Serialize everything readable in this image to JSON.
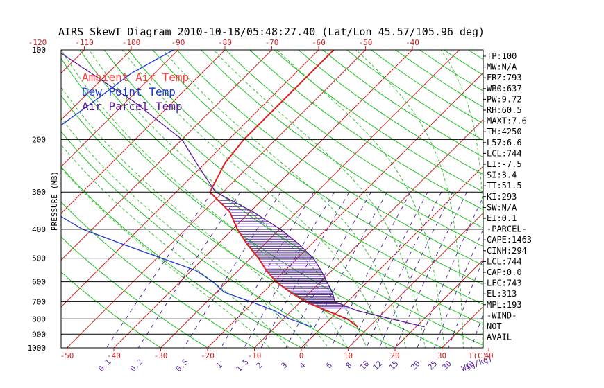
{
  "chart_data": {
    "type": "line",
    "title": "AIRS SkewT Diagram 2010-10-18/05:48:27.40 (Lat/Lon 45.57/105.96 deg)",
    "ylabel": "PRESSURE (MB)",
    "xlabel_temp": "T(C)",
    "xlabel_mix": "W(g/kg)",
    "pressure_levels": [
      {
        "label": "100",
        "p": 100
      },
      {
        "label": "200",
        "p": 200
      },
      {
        "label": "300",
        "p": 300
      },
      {
        "label": "400",
        "p": 400
      },
      {
        "label": "500",
        "p": 500
      },
      {
        "label": "600",
        "p": 600
      },
      {
        "label": "700",
        "p": 700
      },
      {
        "label": "800",
        "p": 800
      },
      {
        "label": "900",
        "p": 900
      },
      {
        "label": "1000",
        "p": 1000
      }
    ],
    "ylim": [
      100,
      1000
    ],
    "bottom_temp_ticks": [
      "-50",
      "-40",
      "-30",
      "-20",
      "-10",
      "0",
      "10",
      "20",
      "30",
      "40"
    ],
    "top_temp_ticks": [
      "-120",
      "-110",
      "-100",
      "-90",
      "-80",
      "-70",
      "-60",
      "-50",
      "-40"
    ],
    "mixing_ratio_ticks": [
      "0.1",
      "0.2",
      "0.5",
      "1",
      "1.5",
      "2",
      "3",
      "4",
      "6",
      "8",
      "10",
      "12",
      "15",
      "20",
      "25",
      "30",
      "40"
    ],
    "legend": [
      {
        "name": "Ambient Air Temp",
        "color": "#ff3b3b"
      },
      {
        "name": "Dew Point Temp",
        "color": "#1a3ad8"
      },
      {
        "name": "Air Parcel Temp",
        "color": "#5a1a9a"
      }
    ],
    "series": [
      {
        "name": "Ambient Air Temp",
        "color": "#e02020",
        "points": [
          [
            100,
            -56.8
          ],
          [
            200,
            -56.8
          ],
          [
            240,
            -55.8
          ],
          [
            300,
            -52.8
          ],
          [
            350,
            -44.3
          ],
          [
            400,
            -39.0
          ],
          [
            450,
            -33.6
          ],
          [
            500,
            -28.3
          ],
          [
            550,
            -24.0
          ],
          [
            600,
            -19.5
          ],
          [
            650,
            -14.3
          ],
          [
            700,
            -9.0
          ],
          [
            750,
            -2.6
          ],
          [
            800,
            3.6
          ],
          [
            850,
            7.6
          ]
        ]
      },
      {
        "name": "Dew Point Temp",
        "color": "#1a3ad8",
        "points": [
          [
            100,
            -91
          ],
          [
            120,
            -95
          ],
          [
            150,
            -97
          ],
          [
            200,
            -100
          ],
          [
            250,
            -98
          ],
          [
            300,
            -92
          ],
          [
            350,
            -82
          ],
          [
            400,
            -72
          ],
          [
            450,
            -60
          ],
          [
            500,
            -49
          ],
          [
            550,
            -39
          ],
          [
            600,
            -33
          ],
          [
            650,
            -28.4
          ],
          [
            700,
            -20.7
          ],
          [
            750,
            -13.7
          ],
          [
            800,
            -8.7
          ],
          [
            850,
            -2.3
          ]
        ]
      },
      {
        "name": "Air Parcel Temp",
        "color": "#5a1a9a",
        "points": [
          [
            100,
            -116
          ],
          [
            150,
            -88
          ],
          [
            200,
            -70
          ],
          [
            250,
            -60
          ],
          [
            300,
            -51.6
          ],
          [
            350,
            -39.3
          ],
          [
            400,
            -29.8
          ],
          [
            450,
            -22.5
          ],
          [
            500,
            -16.6
          ],
          [
            550,
            -12.3
          ],
          [
            600,
            -8.7
          ],
          [
            650,
            -5.3
          ],
          [
            700,
            -2.7
          ],
          [
            750,
            3.9
          ],
          [
            800,
            13.0
          ],
          [
            850,
            21.8
          ]
        ]
      }
    ]
  },
  "indices": [
    {
      "label": "TP",
      "value": "100"
    },
    {
      "label": "MW",
      "value": "N/A"
    },
    {
      "label": "FRZ",
      "value": "793"
    },
    {
      "label": "WB0",
      "value": "637"
    },
    {
      "label": "PW",
      "value": "9.72"
    },
    {
      "label": "RH",
      "value": "60.5"
    },
    {
      "label": "MAXT",
      "value": "7.6"
    },
    {
      "label": "TH",
      "value": "4250"
    },
    {
      "label": "L57",
      "value": "6.6"
    },
    {
      "label": "LCL",
      "value": "744"
    },
    {
      "label": "LI",
      "value": "-7.5"
    },
    {
      "label": "SI",
      "value": "3.4"
    },
    {
      "label": "TT",
      "value": "51.5"
    },
    {
      "label": "KI",
      "value": "293"
    },
    {
      "label": "SW",
      "value": "N/A"
    },
    {
      "label": "EI",
      "value": "0.1"
    }
  ],
  "parcel_header": "-PARCEL-",
  "parcel": [
    {
      "label": "CAPE",
      "value": "1463"
    },
    {
      "label": "CINH",
      "value": "294"
    },
    {
      "label": "LCL",
      "value": "744"
    },
    {
      "label": "CAP",
      "value": "0.0"
    },
    {
      "label": "LFC",
      "value": "743"
    },
    {
      "label": "EL",
      "value": "313"
    },
    {
      "label": "MPL",
      "value": "193"
    }
  ],
  "wind_header": "-WIND-",
  "wind_lines": [
    "NOT",
    "AVAIL"
  ],
  "colors": {
    "isotherm": "#d02020",
    "dry_adiabat": "#20c020",
    "moist_adiabat": "#30c030",
    "mixing_ratio": "#5a2aa0",
    "isobar": "#000000",
    "temp_tick": "#d02020",
    "mix_tick": "#5a2aa0"
  }
}
